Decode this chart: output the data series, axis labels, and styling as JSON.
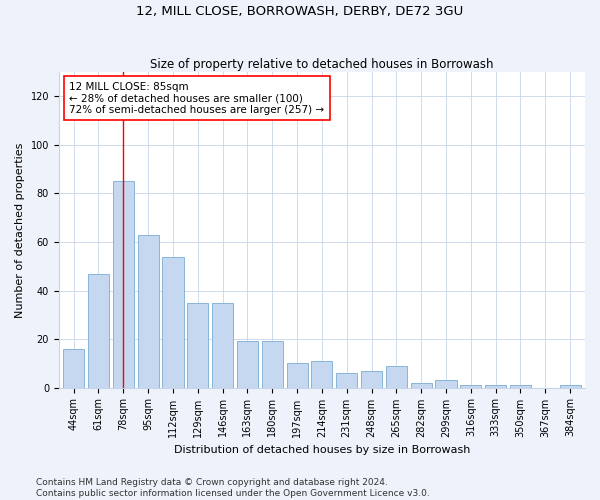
{
  "title": "12, MILL CLOSE, BORROWASH, DERBY, DE72 3GU",
  "subtitle": "Size of property relative to detached houses in Borrowash",
  "xlabel": "Distribution of detached houses by size in Borrowash",
  "ylabel": "Number of detached properties",
  "categories": [
    "44sqm",
    "61sqm",
    "78sqm",
    "95sqm",
    "112sqm",
    "129sqm",
    "146sqm",
    "163sqm",
    "180sqm",
    "197sqm",
    "214sqm",
    "231sqm",
    "248sqm",
    "265sqm",
    "282sqm",
    "299sqm",
    "316sqm",
    "333sqm",
    "350sqm",
    "367sqm",
    "384sqm"
  ],
  "values": [
    16,
    47,
    85,
    63,
    54,
    35,
    35,
    19,
    19,
    10,
    11,
    6,
    7,
    9,
    2,
    3,
    1,
    1,
    1,
    0,
    1
  ],
  "bar_color": "#c5d8f0",
  "bar_edge_color": "#7aadd4",
  "annotation_text": "12 MILL CLOSE: 85sqm\n← 28% of detached houses are smaller (100)\n72% of semi-detached houses are larger (257) →",
  "annotation_box_color": "white",
  "annotation_box_edge_color": "red",
  "vline_x_index": 2,
  "vline_color": "red",
  "ylim": [
    0,
    130
  ],
  "yticks": [
    0,
    20,
    40,
    60,
    80,
    100,
    120
  ],
  "footer_line1": "Contains HM Land Registry data © Crown copyright and database right 2024.",
  "footer_line2": "Contains public sector information licensed under the Open Government Licence v3.0.",
  "title_fontsize": 9.5,
  "subtitle_fontsize": 8.5,
  "axis_label_fontsize": 8,
  "tick_fontsize": 7,
  "annotation_fontsize": 7.5,
  "footer_fontsize": 6.5,
  "bg_color": "#eef2fb",
  "plot_bg_color": "#ffffff",
  "grid_color": "#c8d4e8"
}
